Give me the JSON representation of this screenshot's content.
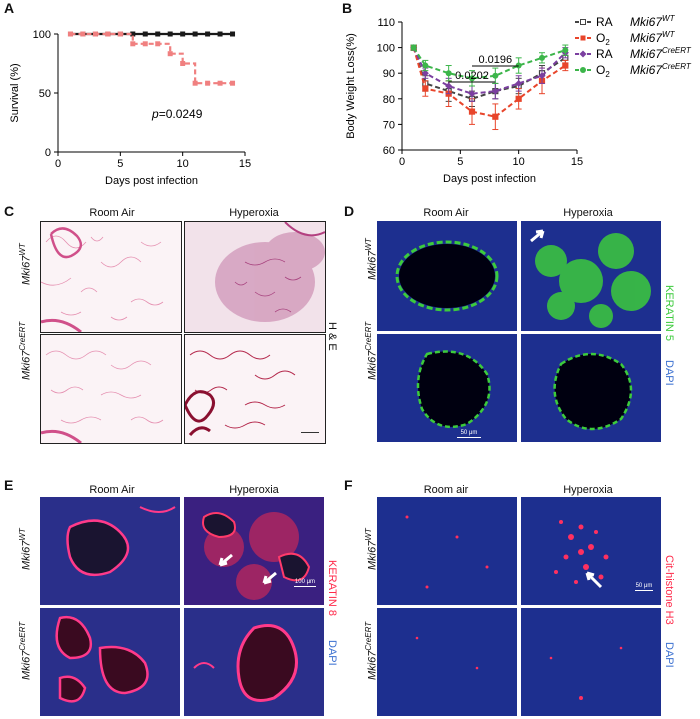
{
  "panels": {
    "A": "A",
    "B": "B",
    "C": "C",
    "D": "D",
    "E": "E",
    "F": "F"
  },
  "panelA": {
    "pvalue_prefix": "p",
    "pvalue_suffix": "=0.0249"
  },
  "panelB": {
    "legend": [
      {
        "condition": "RA",
        "genotype": "Mki67",
        "sup": "WT",
        "color": "#444444"
      },
      {
        "condition": "O",
        "sub": "2",
        "genotype": "Mki67",
        "sup": "WT",
        "color": "#e8452b"
      },
      {
        "condition": "RA",
        "genotype": "Mki67",
        "sup": "CreERT",
        "color": "#7b3fa0"
      },
      {
        "condition": "O",
        "sub": "2",
        "genotype": "Mki67",
        "sup": "CreERT",
        "color": "#3cb54a"
      }
    ],
    "pvalues": [
      "0.0202",
      "0.0196"
    ]
  },
  "chart_data": [
    {
      "type": "line",
      "panel": "A",
      "xlabel": "Days post infection",
      "ylabel": "Survival (%)",
      "xlim": [
        0,
        15
      ],
      "ylim": [
        0,
        100
      ],
      "xticks": [
        0,
        5,
        10,
        15
      ],
      "yticks": [
        0,
        50,
        100
      ],
      "series": [
        {
          "color": "#1a1a1a",
          "x": [
            1,
            2,
            3,
            4,
            5,
            6,
            7,
            8,
            9,
            10,
            11,
            12,
            13,
            14
          ],
          "y": [
            100,
            100,
            100,
            100,
            100,
            100,
            100,
            100,
            100,
            100,
            100,
            100,
            100,
            100
          ]
        },
        {
          "color": "#f08080",
          "x": [
            1,
            2,
            3,
            4,
            5,
            6,
            7,
            8,
            9,
            10,
            11,
            12,
            13,
            14
          ],
          "y": [
            100,
            100,
            100,
            100,
            100,
            91.7,
            91.7,
            91.7,
            83.3,
            75,
            58.3,
            58.3,
            58.3,
            58.3
          ]
        }
      ]
    },
    {
      "type": "line",
      "panel": "B",
      "xlabel": "Days post infection",
      "ylabel": "Body Weight Loss(%)",
      "xlim": [
        0,
        15
      ],
      "ylim": [
        60,
        110
      ],
      "xticks": [
        0,
        5,
        10,
        15
      ],
      "yticks": [
        60,
        70,
        80,
        90,
        100,
        110
      ],
      "x": [
        1,
        2,
        4,
        6,
        8,
        10,
        12,
        14
      ],
      "series": [
        {
          "color": "#444444",
          "values": [
            100,
            86,
            83,
            80,
            83,
            85,
            90,
            96
          ],
          "err": [
            1,
            3,
            4,
            3,
            3,
            3,
            3,
            2
          ]
        },
        {
          "color": "#e8452b",
          "values": [
            100,
            84,
            82,
            75,
            73,
            80,
            87,
            93
          ],
          "err": [
            1,
            3,
            5,
            5,
            5,
            4,
            5,
            2
          ]
        },
        {
          "color": "#7b3fa0",
          "values": [
            100,
            90,
            85,
            82,
            83,
            86,
            89,
            98
          ],
          "err": [
            1,
            2,
            3,
            3,
            3,
            3,
            3,
            2
          ]
        },
        {
          "color": "#3cb54a",
          "values": [
            100,
            93,
            90,
            88,
            89,
            93,
            96,
            99
          ],
          "err": [
            1,
            2,
            3,
            3,
            3,
            3,
            2,
            2
          ]
        }
      ]
    }
  ],
  "panelC": {
    "col1": "Room Air",
    "col2": "Hyperoxia",
    "row_gene": "Mki67",
    "row1_sup": "WT",
    "row2_sup": "CreERT",
    "side_label": "H & E"
  },
  "panelD": {
    "col1": "Room Air",
    "col2": "Hyperoxia",
    "row_gene": "Mki67",
    "row1_sup": "WT",
    "row2_sup": "CreERT",
    "stain1": "KERATIN 5",
    "stain2": "DAPI",
    "scale": "50 μm"
  },
  "panelE": {
    "col1": "Room Air",
    "col2": "Hyperoxia",
    "row_gene": "Mki67",
    "row1_sup": "WT",
    "row2_sup": "CreERT",
    "stain1": "KERATIN 8",
    "stain2": "DAPI",
    "scale": "100 μm"
  },
  "panelF": {
    "col1": "Room air",
    "col2": "Hyperoxia",
    "row_gene": "Mki67",
    "row1_sup": "WT",
    "row2_sup": "CreERT",
    "stain1": "Cit-histone H3",
    "stain2": "DAPI",
    "scale": "50 μm"
  },
  "colors": {
    "he_pink": "#e58fb0",
    "he_bg": "#fbf3f6",
    "fluor_blue": "#1d2f8f",
    "keratin5": "#3ccb3c",
    "keratin8": "#ff2a4a",
    "cit_h3": "#ff3060"
  }
}
